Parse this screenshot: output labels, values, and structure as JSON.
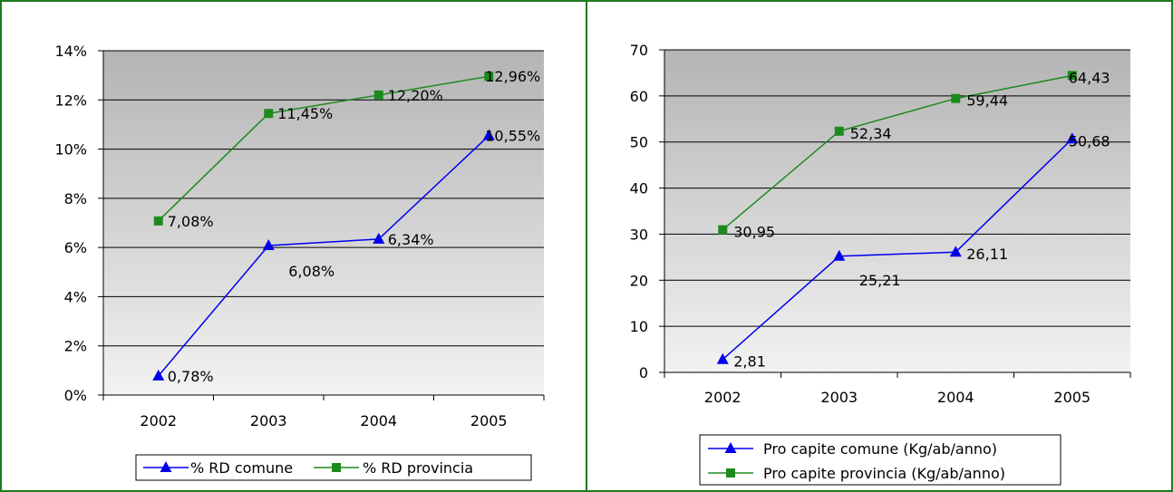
{
  "colors": {
    "frame": "#1f7a1f",
    "series_comune": "#0000ee",
    "series_provincia": "#1e8a1e",
    "plot_top": "#b4b4b4",
    "plot_bottom": "#f2f2f2"
  },
  "chart_data": [
    {
      "type": "line",
      "title": "",
      "xlabel": "",
      "ylabel": "",
      "categories": [
        "2002",
        "2003",
        "2004",
        "2005"
      ],
      "ylim": [
        0,
        14
      ],
      "ytick_values": [
        0,
        2,
        4,
        6,
        8,
        10,
        12,
        14
      ],
      "ytick_labels": [
        "0%",
        "2%",
        "4%",
        "6%",
        "8%",
        "10%",
        "12%",
        "14%"
      ],
      "grid": true,
      "legend_position": "bottom",
      "series": [
        {
          "name": "% RD comune",
          "marker": "triangle",
          "color": "#0000ee",
          "values": [
            0.78,
            6.08,
            6.34,
            10.55
          ],
          "labels": [
            "0,78%",
            "6,08%",
            "6,34%",
            "10,55%"
          ]
        },
        {
          "name": "% RD provincia",
          "marker": "square",
          "color": "#1e8a1e",
          "values": [
            7.08,
            11.45,
            12.2,
            12.96
          ],
          "labels": [
            "7,08%",
            "11,45%",
            "12,20%",
            "12,96%"
          ]
        }
      ]
    },
    {
      "type": "line",
      "title": "",
      "xlabel": "",
      "ylabel": "",
      "categories": [
        "2002",
        "2003",
        "2004",
        "2005"
      ],
      "ylim": [
        0,
        70
      ],
      "ytick_values": [
        0,
        10,
        20,
        30,
        40,
        50,
        60,
        70
      ],
      "ytick_labels": [
        "0",
        "10",
        "20",
        "30",
        "40",
        "50",
        "60",
        "70"
      ],
      "grid": true,
      "legend_position": "bottom",
      "series": [
        {
          "name": "Pro capite comune (Kg/ab/anno)",
          "marker": "triangle",
          "color": "#0000ee",
          "values": [
            2.81,
            25.21,
            26.11,
            50.68
          ],
          "labels": [
            "2,81",
            "25,21",
            "26,11",
            "50,68"
          ]
        },
        {
          "name": "Pro capite provincia (Kg/ab/anno)",
          "marker": "square",
          "color": "#1e8a1e",
          "values": [
            30.95,
            52.34,
            59.44,
            64.43
          ],
          "labels": [
            "30,95",
            "52,34",
            "59,44",
            "64,43"
          ]
        }
      ]
    }
  ]
}
